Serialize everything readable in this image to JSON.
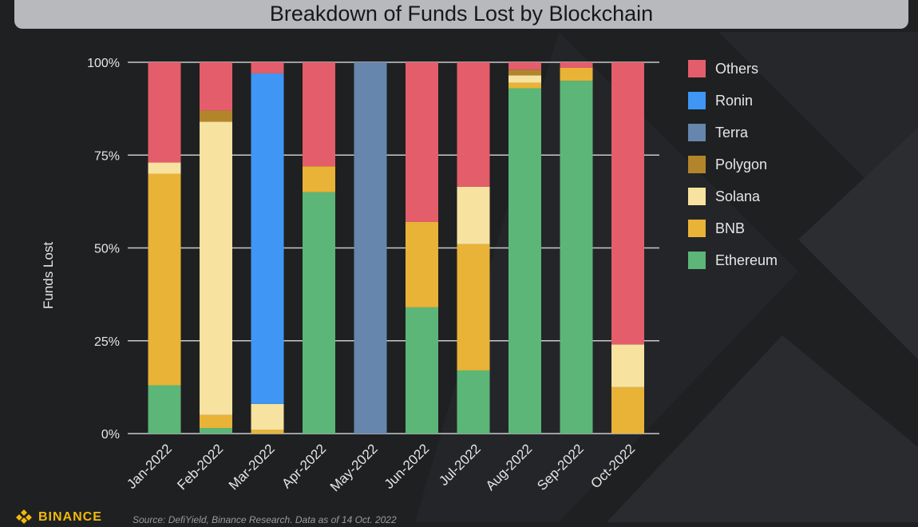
{
  "title": "Breakdown of Funds Lost by Blockchain",
  "brand": "BINANCE",
  "source": "Source: DefiYield, Binance Research. Data as of 14 Oct. 2022",
  "colors": {
    "Ethereum": "#5bb678",
    "BNB": "#e8b337",
    "Solana": "#f7e2a0",
    "Polygon": "#b3852b",
    "Terra": "#6686ae",
    "Ronin": "#3f96f5",
    "Others": "#e45d6a"
  },
  "chart_data": {
    "type": "bar",
    "stacked": true,
    "title": "Breakdown of Funds Lost by Blockchain",
    "xlabel": "",
    "ylabel": "Funds Lost",
    "ylim": [
      0,
      100
    ],
    "yticks": [
      "0%",
      "25%",
      "50%",
      "75%",
      "100%"
    ],
    "grid": true,
    "legend_position": "right",
    "categories": [
      "Jan-2022",
      "Feb-2022",
      "Mar-2022",
      "Apr-2022",
      "May-2022",
      "Jun-2022",
      "Jul-2022",
      "Aug-2022",
      "Sep-2022",
      "Oct-2022"
    ],
    "series": [
      {
        "name": "Ethereum",
        "values": [
          13,
          1.5,
          0,
          65,
          0,
          34,
          17,
          93,
          95,
          0
        ]
      },
      {
        "name": "BNB",
        "values": [
          57,
          3.5,
          1,
          7,
          0,
          23,
          34,
          1.5,
          3.5,
          12.5
        ]
      },
      {
        "name": "Solana",
        "values": [
          3,
          79,
          7,
          0,
          0,
          0,
          15.5,
          2,
          0,
          11.5
        ]
      },
      {
        "name": "Polygon",
        "values": [
          0,
          3,
          0,
          0,
          0,
          0,
          0,
          1.5,
          0,
          0
        ]
      },
      {
        "name": "Terra",
        "values": [
          0,
          0,
          0,
          0,
          100,
          0,
          0,
          0,
          0,
          0
        ]
      },
      {
        "name": "Ronin",
        "values": [
          0,
          0,
          89,
          0,
          0,
          0,
          0,
          0,
          0,
          0
        ]
      },
      {
        "name": "Others",
        "values": [
          27,
          13,
          3,
          28,
          0,
          43,
          33.5,
          2,
          1.5,
          76
        ]
      }
    ]
  }
}
